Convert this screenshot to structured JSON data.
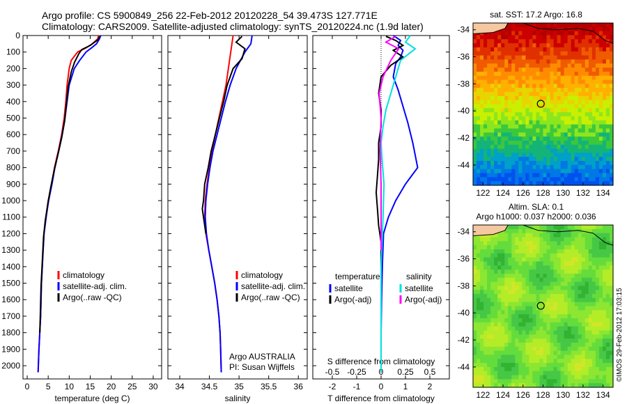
{
  "header": {
    "line1": "Argo profile: CS 5900849_256 22-Feb-2012 20120228_54 39.473S 127.771E",
    "line2": "Climatology: CARS2009. Satellite-adjusted climatology: synTS_20120224.nc (1.9d later)"
  },
  "colors": {
    "climatology": "#ff0000",
    "satellite": "#0000ff",
    "argo": "#000000",
    "satellite_s": "#00e0e0",
    "argo_s": "#ff00ff"
  },
  "footer_note": "©IMOS 29-Feb-2012 17:03:15",
  "chart_data": [
    {
      "id": "temperature",
      "type": "line",
      "xlabel": "temperature (deg C)",
      "ylabel": "",
      "xlim": [
        -1,
        32
      ],
      "ylim": [
        2080,
        0
      ],
      "xticks": [
        0,
        5,
        10,
        15,
        20,
        25,
        30
      ],
      "yticks": [
        0,
        100,
        200,
        300,
        400,
        500,
        600,
        700,
        800,
        900,
        1000,
        1100,
        1200,
        1300,
        1400,
        1500,
        1600,
        1700,
        1800,
        1900,
        2000
      ],
      "legend": [
        "climatology",
        "satellite-adj. clim.",
        "Argo(..raw -QC)"
      ],
      "series": [
        {
          "name": "climatology",
          "color": "#ff0000",
          "x": [
            17.0,
            16.8,
            15.5,
            14.0,
            12.0,
            10.5,
            10.0,
            9.5,
            9.2,
            8.8,
            8.2,
            7.4,
            6.5,
            5.8,
            5.0,
            4.5,
            4.0,
            3.8,
            3.6,
            3.4,
            3.3,
            3.2,
            3.0,
            2.8,
            2.6
          ],
          "y": [
            0,
            20,
            50,
            75,
            100,
            150,
            200,
            300,
            400,
            500,
            600,
            700,
            800,
            900,
            1000,
            1100,
            1200,
            1300,
            1400,
            1500,
            1600,
            1700,
            1800,
            1900,
            2040
          ]
        },
        {
          "name": "satellite-adj. clim.",
          "color": "#0000ff",
          "x": [
            17.5,
            17.2,
            16.5,
            15.3,
            14.0,
            12.5,
            11.2,
            10.0,
            9.5,
            9.0,
            8.3,
            7.5,
            6.6,
            5.9,
            5.1,
            4.5,
            4.0,
            3.8,
            3.6,
            3.4,
            3.3,
            3.2,
            3.0,
            2.8,
            2.6
          ],
          "y": [
            0,
            20,
            50,
            75,
            100,
            150,
            200,
            300,
            400,
            500,
            600,
            700,
            800,
            900,
            1000,
            1100,
            1200,
            1300,
            1400,
            1500,
            1600,
            1700,
            1800,
            1900,
            2040
          ]
        },
        {
          "name": "Argo(..raw -QC)",
          "color": "#000000",
          "x": [
            17.2,
            16.9,
            15.0,
            13.0,
            12.3,
            11.3,
            10.5,
            9.7,
            9.3,
            8.9,
            8.2,
            7.3,
            6.4,
            5.6,
            4.9,
            4.3,
            3.9,
            3.7,
            3.5,
            3.3,
            3.2,
            3.1,
            3.0
          ],
          "y": [
            5,
            25,
            60,
            85,
            110,
            160,
            220,
            320,
            420,
            520,
            620,
            720,
            820,
            920,
            1020,
            1120,
            1220,
            1320,
            1420,
            1520,
            1620,
            1720,
            1800
          ]
        }
      ]
    },
    {
      "id": "salinity",
      "type": "line",
      "xlabel": "salinity",
      "xlim": [
        33.8,
        36.15
      ],
      "ylim": [
        2080,
        0
      ],
      "xticks": [
        34,
        34.5,
        35,
        35.5,
        36
      ],
      "legend": [
        "climatology",
        "satellite-adj. clim.",
        "Argo(..raw -QC)"
      ],
      "annotation": [
        "Argo AUSTRALIA",
        "PI: Susan Wijffels"
      ],
      "series": [
        {
          "name": "climatology",
          "color": "#ff0000",
          "x": [
            34.9,
            34.88,
            34.86,
            34.82,
            34.78,
            34.72,
            34.66,
            34.6,
            34.54,
            34.5,
            34.46,
            34.43,
            34.42,
            34.44,
            34.49,
            34.54,
            34.59,
            34.63,
            34.66,
            34.68,
            34.69,
            34.7
          ],
          "y": [
            0,
            50,
            100,
            200,
            300,
            400,
            500,
            600,
            700,
            800,
            900,
            1000,
            1100,
            1200,
            1300,
            1400,
            1500,
            1600,
            1700,
            1800,
            1900,
            2040
          ]
        },
        {
          "name": "satellite-adj. clim.",
          "color": "#0000ff",
          "x": [
            35.22,
            35.2,
            35.1,
            34.95,
            34.85,
            34.77,
            34.7,
            34.63,
            34.56,
            34.51,
            34.47,
            34.44,
            34.43,
            34.45,
            34.49,
            34.54,
            34.59,
            34.63,
            34.66,
            34.68,
            34.69,
            34.7
          ],
          "y": [
            0,
            50,
            100,
            200,
            300,
            400,
            500,
            600,
            700,
            800,
            900,
            1000,
            1100,
            1200,
            1300,
            1400,
            1500,
            1600,
            1700,
            1800,
            1900,
            2040
          ]
        },
        {
          "name": "Argo(..raw -QC)",
          "color": "#000000",
          "x": [
            35.05,
            34.95,
            35.1,
            35.05,
            34.9,
            34.8,
            34.74,
            34.67,
            34.6,
            34.53,
            34.48,
            34.42,
            34.4,
            34.38,
            34.4,
            34.44
          ],
          "y": [
            5,
            40,
            80,
            140,
            200,
            300,
            400,
            500,
            600,
            700,
            800,
            900,
            1000,
            1050,
            1100,
            1200
          ]
        }
      ]
    },
    {
      "id": "difference",
      "type": "line",
      "xlabel": "T difference from climatology",
      "xlabel2": "S difference from climatology",
      "xlim": [
        -2.8,
        2.8
      ],
      "xlim2": [
        -0.7,
        0.7
      ],
      "ylim": [
        2080,
        0
      ],
      "xticks": [
        -2,
        -1,
        0,
        1,
        2
      ],
      "xticks2": [
        -0.5,
        -0.25,
        0,
        0.25,
        0.5
      ],
      "legend_temperature": {
        "title": "temperature",
        "items": [
          "satellite",
          "Argo(-adj)"
        ]
      },
      "legend_salinity": {
        "title": "salinity",
        "items": [
          "satellite",
          "Argo(-adj)"
        ]
      },
      "series": [
        {
          "name": "temperature satellite",
          "color": "#0000ff",
          "axis": "T",
          "x": [
            0.5,
            0.8,
            0.7,
            0.9,
            0.8,
            0.6,
            0.5,
            0.7,
            0.9,
            1.1,
            1.3,
            1.5,
            1.0,
            0.6,
            0.3,
            0.1,
            0.05,
            0.02,
            0.0,
            0.0
          ],
          "y": [
            0,
            30,
            60,
            90,
            130,
            170,
            250,
            330,
            430,
            530,
            650,
            800,
            900,
            1000,
            1100,
            1200,
            1400,
            1600,
            1800,
            2040
          ]
        },
        {
          "name": "temperature Argo(-adj)",
          "color": "#000000",
          "axis": "T",
          "x": [
            0.2,
            0.6,
            0.9,
            0.5,
            0.9,
            0.4,
            0.0,
            -0.1,
            0.0,
            0.0,
            -0.1,
            -0.1,
            -0.15,
            -0.2,
            -0.15,
            -0.1,
            0.0,
            0.0,
            0.0
          ],
          "y": [
            5,
            30,
            60,
            90,
            130,
            180,
            250,
            350,
            450,
            550,
            650,
            750,
            850,
            950,
            1050,
            1150,
            1250,
            1300,
            1800
          ]
        },
        {
          "name": "salinity satellite",
          "color": "#00e0e0",
          "axis": "S",
          "x": [
            0.3,
            0.25,
            0.35,
            0.2,
            0.15,
            0.1,
            0.05,
            0.02,
            0.0,
            0.01,
            0.03,
            0.02,
            0.0,
            0.0,
            0.0
          ],
          "y": [
            0,
            40,
            80,
            150,
            250,
            350,
            450,
            550,
            650,
            750,
            900,
            1100,
            1400,
            1700,
            2040
          ]
        },
        {
          "name": "salinity Argo(-adj)",
          "color": "#ff00ff",
          "axis": "S",
          "x": [
            0.15,
            0.05,
            0.18,
            0.1,
            0.02,
            -0.02,
            0.0,
            -0.01,
            0.0,
            0.0,
            0.0
          ],
          "y": [
            5,
            40,
            80,
            150,
            250,
            350,
            500,
            700,
            900,
            1100,
            1300
          ]
        }
      ]
    },
    {
      "id": "sst_map",
      "type": "heatmap",
      "title": "sat. SST: 17.2  Argo: 16.8",
      "xticks": [
        122,
        124,
        126,
        128,
        130,
        132,
        134
      ],
      "yticks": [
        -34,
        -36,
        -38,
        -40,
        -42,
        -44
      ],
      "xlim": [
        121,
        135
      ],
      "ylim": [
        -45.5,
        -33.5
      ],
      "argo_position": {
        "lon": 127.771,
        "lat": -39.473
      }
    },
    {
      "id": "sla_map",
      "type": "heatmap",
      "title": "Altim. SLA: 0.1",
      "subtitle": "Argo h1000: 0.037  h2000: 0.036",
      "xticks": [
        122,
        124,
        126,
        128,
        130,
        132,
        134
      ],
      "yticks": [
        -34,
        -36,
        -38,
        -40,
        -42,
        -44
      ],
      "xlim": [
        121,
        135
      ],
      "ylim": [
        -45.5,
        -33.5
      ],
      "argo_position": {
        "lon": 127.771,
        "lat": -39.473
      }
    }
  ]
}
